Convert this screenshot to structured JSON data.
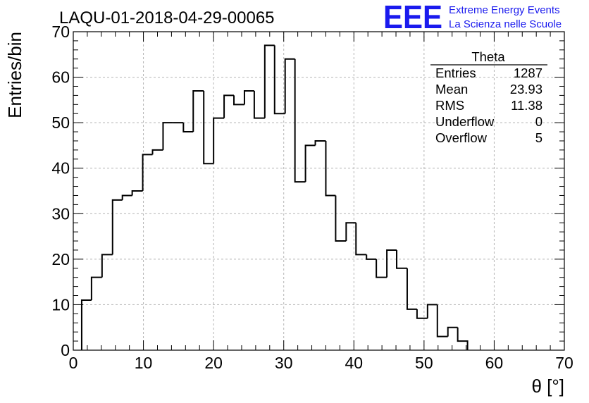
{
  "title": "LAQU-01-2018-04-29-00065",
  "logo": {
    "mark": "EEE",
    "line1": "Extreme Energy Events",
    "line2": "La Scienza nelle Scuole",
    "color": "#1a1aee"
  },
  "chart_data": {
    "type": "histogram",
    "xlabel": "θ [°]",
    "ylabel": "Entries/bin",
    "xlim": [
      0,
      70
    ],
    "ylim": [
      0,
      70
    ],
    "x_ticks": [
      0,
      10,
      20,
      30,
      40,
      50,
      60,
      70
    ],
    "y_ticks": [
      0,
      10,
      20,
      30,
      40,
      50,
      60,
      70
    ],
    "grid": true,
    "bin_edges": [
      1.2,
      2.6,
      4.1,
      5.6,
      7.0,
      8.4,
      9.9,
      11.3,
      12.8,
      14.2,
      15.7,
      17.1,
      18.6,
      20.0,
      21.5,
      22.9,
      24.4,
      25.8,
      27.3,
      28.7,
      30.2,
      31.6,
      33.1,
      34.5,
      36.0,
      37.4,
      38.9,
      40.3,
      41.8,
      43.2,
      44.7,
      46.1,
      47.6,
      49.0,
      50.5,
      51.9,
      53.4,
      54.8
    ],
    "counts": [
      11,
      16,
      21,
      33,
      34,
      35,
      43,
      44,
      50,
      50,
      48,
      57,
      41,
      51,
      56,
      54,
      57,
      51,
      67,
      52,
      64,
      37,
      45,
      46,
      34,
      24,
      28,
      21,
      20,
      16,
      22,
      18,
      9,
      7,
      10,
      3,
      5,
      2
    ],
    "line_color": "#000000"
  },
  "stats": {
    "title": "Theta",
    "rows": [
      {
        "label": "Entries",
        "value": "1287"
      },
      {
        "label": "Mean",
        "value": "23.93"
      },
      {
        "label": "RMS",
        "value": "11.38"
      },
      {
        "label": "Underflow",
        "value": "0"
      },
      {
        "label": "Overflow",
        "value": "5"
      }
    ]
  }
}
